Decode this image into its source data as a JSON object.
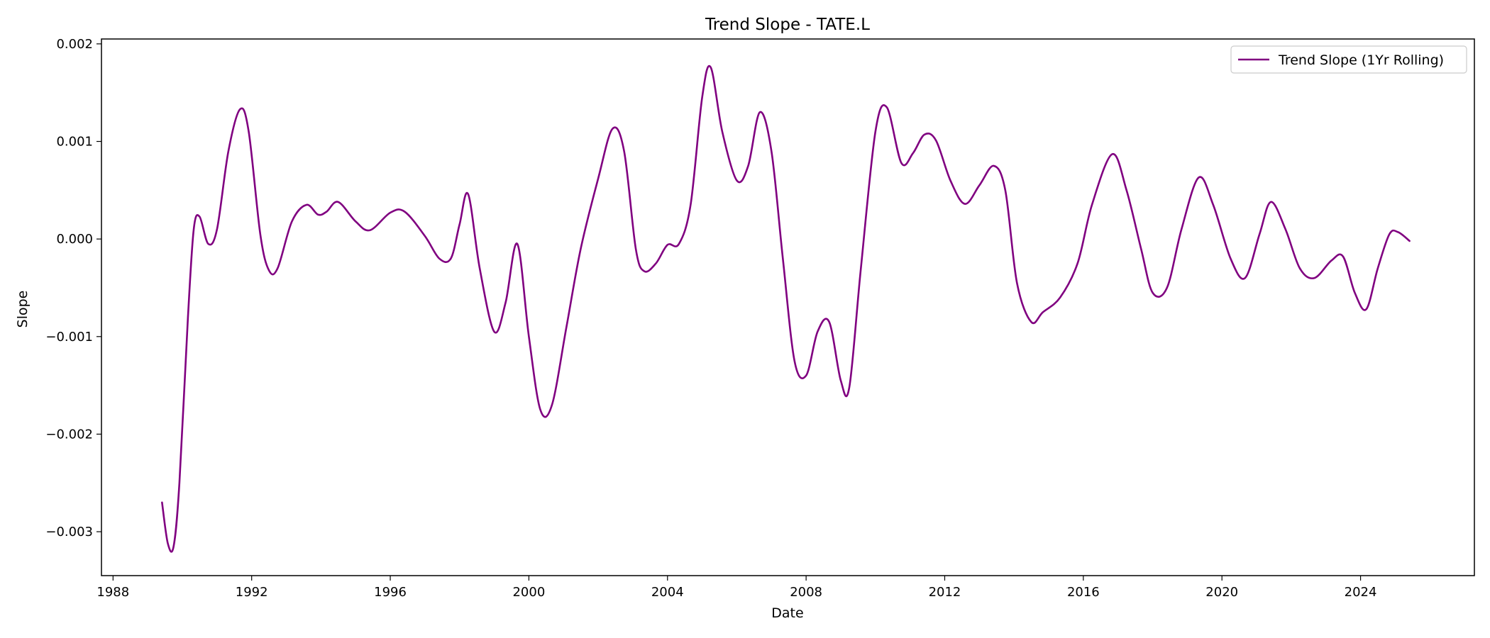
{
  "chart_data": {
    "type": "line",
    "title": "Trend Slope - TATE.L",
    "xlabel": "Date",
    "ylabel": "Slope",
    "xlim": [
      "1987-09-01",
      "2027-04-15"
    ],
    "ylim": [
      -0.00345,
      0.00205
    ],
    "x_ticks": [
      1988,
      1992,
      1996,
      2000,
      2004,
      2008,
      2012,
      2016,
      2020,
      2024
    ],
    "x_tick_labels": [
      "1988",
      "1992",
      "1996",
      "2000",
      "2004",
      "2008",
      "2012",
      "2016",
      "2020",
      "2024"
    ],
    "y_ticks": [
      -0.003,
      -0.002,
      -0.001,
      0.0,
      0.001,
      0.002
    ],
    "y_tick_labels": [
      "−0.003",
      "−0.002",
      "−0.001",
      "0.000",
      "0.001",
      "0.002"
    ],
    "grid": false,
    "legend": {
      "position": "top-right"
    },
    "series": [
      {
        "name": "Trend Slope (1Yr Rolling)",
        "color": "#800080",
        "points": [
          [
            "1989-06-01",
            -0.0027
          ],
          [
            "1989-08-01",
            -0.00312
          ],
          [
            "1989-10-01",
            -0.00315
          ],
          [
            "1989-12-01",
            -0.0025
          ],
          [
            "1990-03-01",
            -0.0008
          ],
          [
            "1990-05-01",
            0.0001
          ],
          [
            "1990-07-01",
            0.00023
          ],
          [
            "1990-10-01",
            -5e-05
          ],
          [
            "1991-01-01",
            0.0001
          ],
          [
            "1991-05-01",
            0.0009
          ],
          [
            "1991-09-01",
            0.00133
          ],
          [
            "1991-12-01",
            0.0011
          ],
          [
            "1992-04-01",
            5e-05
          ],
          [
            "1992-07-01",
            -0.00032
          ],
          [
            "1992-10-01",
            -0.0003
          ],
          [
            "1993-03-01",
            0.00018
          ],
          [
            "1993-08-01",
            0.00035
          ],
          [
            "1993-12-01",
            0.00025
          ],
          [
            "1994-03-01",
            0.00028
          ],
          [
            "1994-07-01",
            0.00038
          ],
          [
            "1995-01-01",
            0.00018
          ],
          [
            "1995-06-01",
            9e-05
          ],
          [
            "1996-01-01",
            0.00027
          ],
          [
            "1996-06-01",
            0.00028
          ],
          [
            "1997-01-01",
            3e-05
          ],
          [
            "1997-06-01",
            -0.0002
          ],
          [
            "1997-10-01",
            -0.0002
          ],
          [
            "1998-01-01",
            0.00015
          ],
          [
            "1998-04-01",
            0.00046
          ],
          [
            "1998-08-01",
            -0.0003
          ],
          [
            "1999-01-01",
            -0.00095
          ],
          [
            "1999-05-01",
            -0.00065
          ],
          [
            "1999-09-01",
            -5e-05
          ],
          [
            "2000-01-01",
            -0.001
          ],
          [
            "2000-05-01",
            -0.00175
          ],
          [
            "2000-09-01",
            -0.0017
          ],
          [
            "2001-02-01",
            -0.0009
          ],
          [
            "2001-07-01",
            -0.0001
          ],
          [
            "2002-01-01",
            0.00062
          ],
          [
            "2002-06-01",
            0.00113
          ],
          [
            "2002-10-01",
            0.0009
          ],
          [
            "2003-02-01",
            -0.0001
          ],
          [
            "2003-05-01",
            -0.00033
          ],
          [
            "2003-09-01",
            -0.00025
          ],
          [
            "2004-01-01",
            -6e-05
          ],
          [
            "2004-05-01",
            -5e-05
          ],
          [
            "2004-09-01",
            0.00035
          ],
          [
            "2005-01-01",
            0.00145
          ],
          [
            "2005-04-01",
            0.00176
          ],
          [
            "2005-08-01",
            0.0011
          ],
          [
            "2006-01-01",
            0.0006
          ],
          [
            "2006-05-01",
            0.00075
          ],
          [
            "2006-09-01",
            0.0013
          ],
          [
            "2007-01-01",
            0.0009
          ],
          [
            "2007-05-01",
            -0.0002
          ],
          [
            "2007-09-01",
            -0.00125
          ],
          [
            "2008-01-01",
            -0.0014
          ],
          [
            "2008-05-01",
            -0.00095
          ],
          [
            "2008-09-01",
            -0.00085
          ],
          [
            "2009-01-01",
            -0.00145
          ],
          [
            "2009-04-01",
            -0.00152
          ],
          [
            "2009-08-01",
            -0.0003
          ],
          [
            "2010-01-01",
            0.0011
          ],
          [
            "2010-05-01",
            0.00135
          ],
          [
            "2010-10-01",
            0.00078
          ],
          [
            "2011-02-01",
            0.00088
          ],
          [
            "2011-06-01",
            0.00107
          ],
          [
            "2011-10-01",
            0.00101
          ],
          [
            "2012-03-01",
            0.0006
          ],
          [
            "2012-08-01",
            0.00036
          ],
          [
            "2013-01-01",
            0.00055
          ],
          [
            "2013-06-01",
            0.00075
          ],
          [
            "2013-10-01",
            0.0005
          ],
          [
            "2014-02-01",
            -0.00045
          ],
          [
            "2014-07-01",
            -0.00085
          ],
          [
            "2014-11-01",
            -0.00075
          ],
          [
            "2015-05-01",
            -0.0006
          ],
          [
            "2015-11-01",
            -0.00025
          ],
          [
            "2016-04-01",
            0.00035
          ],
          [
            "2016-11-01",
            0.00087
          ],
          [
            "2017-04-01",
            0.0005
          ],
          [
            "2017-09-01",
            -0.0001
          ],
          [
            "2018-01-01",
            -0.00055
          ],
          [
            "2018-06-01",
            -0.0005
          ],
          [
            "2018-11-01",
            0.0001
          ],
          [
            "2019-05-01",
            0.00063
          ],
          [
            "2019-10-01",
            0.00035
          ],
          [
            "2020-04-01",
            -0.0002
          ],
          [
            "2020-09-01",
            -0.0004
          ],
          [
            "2021-02-01",
            5e-05
          ],
          [
            "2021-06-01",
            0.00038
          ],
          [
            "2021-11-01",
            0.0001
          ],
          [
            "2022-04-01",
            -0.0003
          ],
          [
            "2022-09-01",
            -0.0004
          ],
          [
            "2023-03-01",
            -0.00022
          ],
          [
            "2023-07-01",
            -0.00018
          ],
          [
            "2023-11-01",
            -0.00055
          ],
          [
            "2024-03-01",
            -0.00072
          ],
          [
            "2024-07-01",
            -0.0003
          ],
          [
            "2024-11-01",
            5e-05
          ],
          [
            "2025-02-01",
            7e-05
          ],
          [
            "2025-06-01",
            -2e-05
          ]
        ]
      }
    ]
  }
}
